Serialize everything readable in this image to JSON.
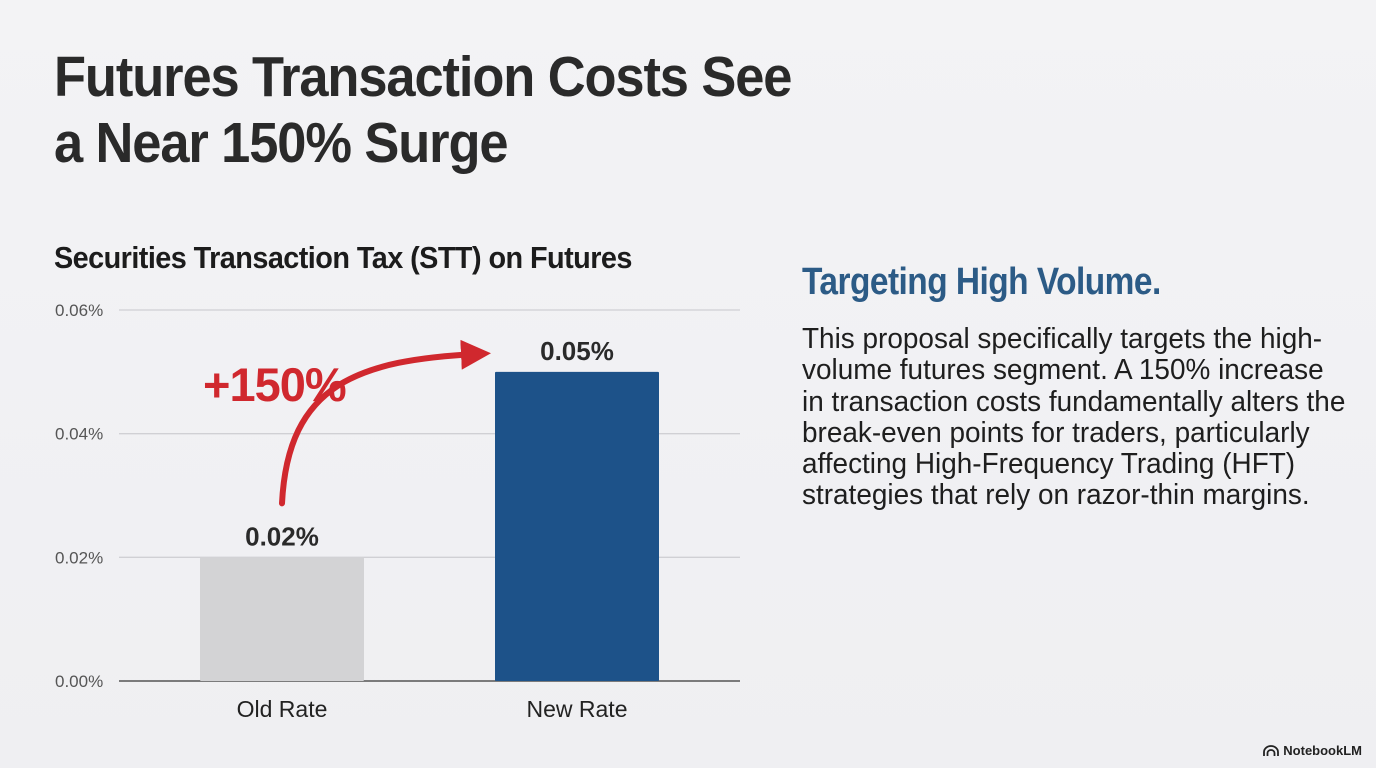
{
  "slide": {
    "title_line1": "Futures Transaction Costs See",
    "title_line2": "a Near 150% Surge"
  },
  "panel": {
    "heading": "Targeting High Volume.",
    "body": "This proposal specifically targets the high-volume futures segment. A 150% increase in transaction costs fundamentally alters the break-even points for traders, particularly affecting High-Frequency Trading (HFT) strategies that rely on razor-thin margins."
  },
  "brand": {
    "name": "NotebookLM",
    "icon": "notebooklm-logo-icon"
  },
  "colors": {
    "old_bar": "#d3d3d5",
    "new_bar": "#1d5289",
    "arrow": "#d0282e",
    "heading": "#2c5b86",
    "grid": "#d0d0d4",
    "axis": "#555555"
  },
  "chart_data": {
    "type": "bar",
    "title": "Securities Transaction Tax (STT) on Futures",
    "categories": [
      "Old Rate",
      "New Rate"
    ],
    "values": [
      0.02,
      0.05
    ],
    "data_labels": [
      "0.02%",
      "0.05%"
    ],
    "ylim": [
      0,
      0.06
    ],
    "yticks": [
      0,
      0.02,
      0.04,
      0.06
    ],
    "ytick_labels": [
      "0.00%",
      "0.02%",
      "0.04%",
      "0.06%"
    ],
    "xlabel": "",
    "ylabel": "",
    "grid": true,
    "annotation": {
      "text": "+150%",
      "from": "Old Rate",
      "to": "New Rate"
    }
  }
}
